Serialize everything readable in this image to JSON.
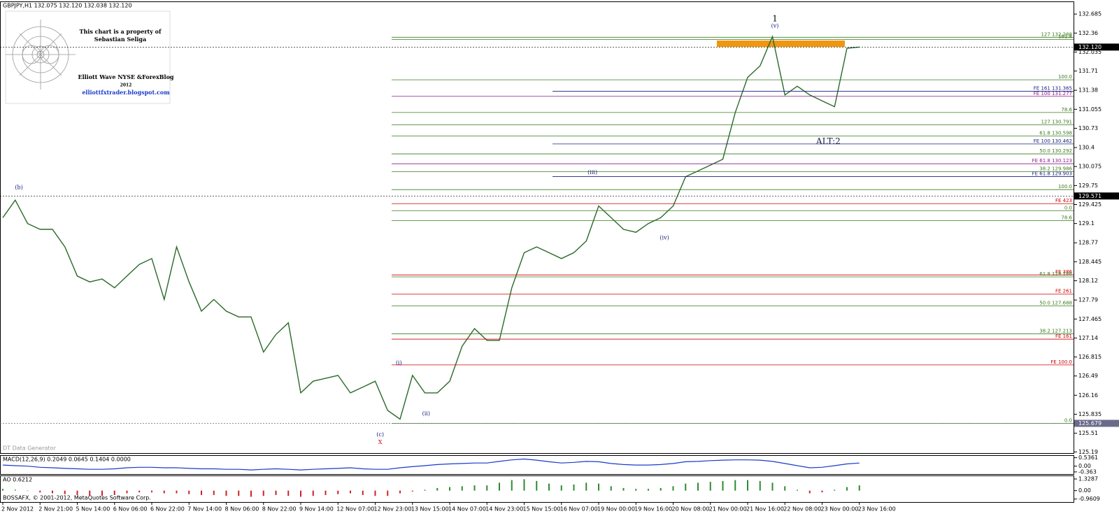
{
  "header": {
    "symbol": "GBPJPY,H1 132.075 132.120 132.038 132.120",
    "footer_left": "DT Data Generator",
    "copyright": "BOSSAFX, © 2001-2012, MetaQuotes Software Corp."
  },
  "watermark": {
    "line1": "This chart is a property of",
    "line2": "Sebastian Seliga",
    "line3": "Elliott Wave NYSE &ForexBlog",
    "line4": "2012",
    "line5": "elliottfxtrader.blogspot.com"
  },
  "chart_data": [
    {
      "type": "line",
      "color": "#2a6a2a",
      "categories": [
        "2 Nov 2012",
        null,
        null,
        "2 Nov 21:00",
        null,
        null,
        "5 Nov 14:00",
        null,
        null,
        "6 Nov 06:00",
        null,
        null,
        "6 Nov 22:00",
        null,
        null,
        "7 Nov 14:00",
        null,
        null,
        "8 Nov 06:00",
        null,
        null,
        "8 Nov 22:00",
        null,
        null,
        "9 Nov 14:00",
        null,
        null,
        "12 Nov 07:00",
        null,
        null,
        "12 Nov 23:00",
        null,
        null,
        "13 Nov 15:00",
        null,
        null,
        "14 Nov 07:00",
        null,
        null,
        "14 Nov 23:00",
        null,
        null,
        "15 Nov 15:00",
        null,
        null,
        "16 Nov 07:00",
        null,
        null,
        "19 Nov 00:00",
        null,
        null,
        "19 Nov 16:00",
        null,
        null,
        "20 Nov 08:00",
        null,
        null,
        "21 Nov 00:00",
        null,
        null,
        "21 Nov 16:00",
        null,
        null,
        "22 Nov 08:00",
        null,
        null,
        "23 Nov 00:00",
        null,
        null,
        "23 Nov 16:00"
      ],
      "values": [
        129.2,
        129.5,
        129.1,
        129.0,
        129.0,
        128.7,
        128.2,
        128.1,
        128.15,
        128.0,
        128.2,
        128.4,
        128.5,
        127.8,
        128.7,
        128.1,
        127.6,
        127.8,
        127.6,
        127.5,
        127.5,
        126.9,
        127.2,
        127.4,
        126.2,
        126.4,
        126.45,
        126.5,
        126.2,
        126.3,
        126.4,
        125.9,
        125.75,
        126.5,
        126.2,
        126.2,
        126.4,
        127.0,
        127.3,
        127.1,
        127.1,
        128.0,
        128.6,
        128.7,
        128.6,
        128.5,
        128.6,
        128.8,
        129.4,
        129.2,
        129.0,
        128.95,
        129.1,
        129.2,
        129.4,
        129.9,
        130.0,
        130.1,
        130.2,
        131.0,
        131.6,
        131.8,
        132.3,
        131.3,
        131.45,
        131.3,
        131.2,
        131.1,
        132.1,
        132.12
      ],
      "ylim": [
        125.17,
        132.89
      ],
      "yticks": [
        132.685,
        132.36,
        132.035,
        131.71,
        131.38,
        131.055,
        130.73,
        130.4,
        130.075,
        129.75,
        129.425,
        129.1,
        128.77,
        128.445,
        128.12,
        127.79,
        127.465,
        127.14,
        126.815,
        126.49,
        126.16,
        125.835,
        125.51,
        125.19
      ],
      "levels": [
        {
          "label": "127 132.288",
          "value": 132.288,
          "color": "#3b7a1e"
        },
        {
          "label": "161.8",
          "value": 132.25,
          "color": "#3b7a1e"
        },
        {
          "label": "100.0",
          "value": 131.56,
          "color": "#3b7a1e"
        },
        {
          "label": "FE 161 131.365",
          "value": 131.365,
          "color": "#1a237e"
        },
        {
          "label": "FE 100 131.277",
          "value": 131.277,
          "color": "#8b1a8b"
        },
        {
          "label": "78.6",
          "value": 131.0,
          "color": "#3b7a1e"
        },
        {
          "label": "127 130.791",
          "value": 130.791,
          "color": "#3b7a1e"
        },
        {
          "label": "61.8 130.598",
          "value": 130.598,
          "color": "#3b7a1e"
        },
        {
          "label": "FE 100 130.462",
          "value": 130.462,
          "color": "#1a237e"
        },
        {
          "label": "50.0 130.292",
          "value": 130.292,
          "color": "#3b7a1e"
        },
        {
          "label": "FE 61.8 130.123",
          "value": 130.123,
          "color": "#8b1a8b"
        },
        {
          "label": "38.2 129.986",
          "value": 129.986,
          "color": "#3b7a1e"
        },
        {
          "label": "FE 61.8 129.903",
          "value": 129.903,
          "color": "#1a237e"
        },
        {
          "label": "100.0",
          "value": 129.68,
          "color": "#3b7a1e"
        },
        {
          "label": "FE 423",
          "value": 129.44,
          "color": "#cc0000"
        },
        {
          "label": "0.0",
          "value": 129.32,
          "color": "#3b7a1e"
        },
        {
          "label": "78.6",
          "value": 129.15,
          "color": "#3b7a1e"
        },
        {
          "label": "FE 386",
          "value": 128.22,
          "color": "#cc0000"
        },
        {
          "label": "61.8 128.186",
          "value": 128.186,
          "color": "#3b7a1e"
        },
        {
          "label": "FE 261",
          "value": 127.89,
          "color": "#cc0000"
        },
        {
          "label": "50.0 127.688",
          "value": 127.688,
          "color": "#3b7a1e"
        },
        {
          "label": "38.2 127.213",
          "value": 127.213,
          "color": "#3b7a1e"
        },
        {
          "label": "FE 161",
          "value": 127.12,
          "color": "#cc0000"
        },
        {
          "label": "FE 100.0",
          "value": 126.68,
          "color": "#cc0000"
        },
        {
          "label": "0.0",
          "value": 125.68,
          "color": "#3b7a1e"
        }
      ],
      "markers": [
        {
          "label": "132.120",
          "value": 132.12,
          "color": "#000000"
        },
        {
          "label": "129.571",
          "value": 129.571,
          "color": "#000000"
        },
        {
          "label": "125.679",
          "value": 125.679,
          "color": "#6a6a8a"
        }
      ],
      "annotations": [
        {
          "text": "1",
          "x": 62.2,
          "y": 132.6,
          "color": "#000000"
        },
        {
          "text": "(v)",
          "x": 62.2,
          "y": 132.48,
          "color": "#1a237e"
        },
        {
          "text": "ALT:2",
          "x": 66.5,
          "y": 130.5,
          "color": "#1a1a4a"
        },
        {
          "text": "(iii)",
          "x": 47.5,
          "y": 129.97,
          "color": "#1a237e"
        },
        {
          "text": "(iv)",
          "x": 53.3,
          "y": 128.85,
          "color": "#1a237e"
        },
        {
          "text": "(i)",
          "x": 31.9,
          "y": 126.71,
          "color": "#1a237e"
        },
        {
          "text": "(ii)",
          "x": 34.1,
          "y": 125.84,
          "color": "#1a237e"
        },
        {
          "text": "(b)",
          "x": 1.3,
          "y": 129.71,
          "color": "#1a237e"
        },
        {
          "text": "(c)",
          "x": 30.4,
          "y": 125.48,
          "color": "#1a237e"
        },
        {
          "text": "X",
          "x": 30.4,
          "y": 125.35,
          "color": "#cc0000"
        }
      ]
    },
    {
      "type": "line",
      "title": "MACD(12,26,9) 0.2049 0.0645 0.1404 0.0000",
      "color": "#1a3acc",
      "values": [
        0.07,
        0.03,
        0,
        -0.07,
        -0.1,
        -0.14,
        -0.17,
        -0.2,
        -0.2,
        -0.17,
        -0.1,
        -0.07,
        -0.07,
        -0.1,
        -0.1,
        -0.14,
        -0.17,
        -0.17,
        -0.2,
        -0.2,
        -0.24,
        -0.2,
        -0.17,
        -0.2,
        -0.24,
        -0.2,
        -0.17,
        -0.14,
        -0.1,
        -0.17,
        -0.2,
        -0.2,
        -0.1,
        -0.03,
        0.03,
        0.1,
        0.14,
        0.17,
        0.2,
        0.2,
        0.3,
        0.4,
        0.45,
        0.38,
        0.28,
        0.2,
        0.24,
        0.3,
        0.28,
        0.17,
        0.1,
        0.07,
        0.07,
        0.1,
        0.17,
        0.28,
        0.3,
        0.35,
        0.38,
        0.4,
        0.4,
        0.38,
        0.3,
        0.17,
        0.03,
        -0.1,
        -0.07,
        0.03,
        0.14,
        0.2
      ],
      "ylim": [
        -0.5,
        0.65
      ],
      "yticks": [
        0.5361,
        {
          "value": 0,
          "label": "0.00"
        },
        -0.363
      ]
    },
    {
      "type": "bar",
      "title": "AO 0.6212",
      "color": "#2e8b2e",
      "negative_color": "#cc2222",
      "values": [
        0.2,
        0.1,
        0.0,
        -0.2,
        -0.3,
        -0.4,
        -0.5,
        -0.6,
        -0.6,
        -0.5,
        -0.3,
        -0.2,
        -0.2,
        -0.3,
        -0.3,
        -0.4,
        -0.5,
        -0.5,
        -0.6,
        -0.6,
        -0.7,
        -0.6,
        -0.5,
        -0.6,
        -0.7,
        -0.6,
        -0.5,
        -0.4,
        -0.3,
        -0.5,
        -0.6,
        -0.6,
        -0.3,
        -0.1,
        0.1,
        0.3,
        0.4,
        0.5,
        0.6,
        0.6,
        0.9,
        1.2,
        1.3,
        1.1,
        0.8,
        0.6,
        0.7,
        0.9,
        0.8,
        0.5,
        0.3,
        0.2,
        0.2,
        0.3,
        0.5,
        0.8,
        0.9,
        1.0,
        1.1,
        1.2,
        1.2,
        1.1,
        0.9,
        0.5,
        0.1,
        -0.3,
        -0.2,
        0.1,
        0.4,
        0.6
      ],
      "ylim": [
        -1.3,
        1.65
      ],
      "yticks": [
        1.3287,
        {
          "value": 0,
          "label": "0.00"
        },
        -0.9609
      ]
    }
  ]
}
